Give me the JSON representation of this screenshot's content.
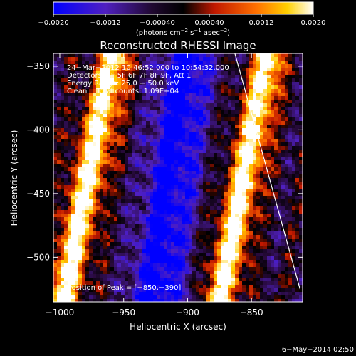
{
  "chart_data": {
    "type": "heatmap",
    "title": "Reconstructed RHESSI Image",
    "xlabel": "Heliocentric X (arcsec)",
    "ylabel": "Heliocentric Y (arcsec)",
    "xlim": [
      -1005,
      -810
    ],
    "ylim": [
      -535,
      -340
    ],
    "x_ticks": [
      -1000,
      -950,
      -900,
      -850
    ],
    "x_tick_labels": [
      "−1000",
      "−950",
      "−900",
      "−850"
    ],
    "y_ticks": [
      -350,
      -400,
      -450,
      -500
    ],
    "y_tick_labels": [
      "−350",
      "−400",
      "−450",
      "−500"
    ],
    "colorbar": {
      "range": [
        -0.002,
        0.002
      ],
      "ticks": [
        -0.002,
        -0.0012,
        -0.0004,
        0.0004,
        0.0012,
        0.002
      ],
      "tick_labels": [
        "−0.0020",
        "−0.0012",
        "−0.00040",
        "0.00040",
        "0.0012",
        "0.0020"
      ],
      "units_main": "(photons cm",
      "units_exp1": "−2",
      "units_mid": " s",
      "units_exp2": "−1",
      "units_mid2": " asec",
      "units_exp3": "−2",
      "units_end": ")",
      "colormap": [
        "#0000ff",
        "#6020a0",
        "#000000",
        "#c02000",
        "#ff8000",
        "#ffff00",
        "#ffffff"
      ]
    },
    "info_lines": [
      "24−Mar−2012 10:46:52.000 to 10:54:32.000",
      "Detectors: 3F 5F 6F 7F 8F 9F, Att 1",
      "Energy Range: 25.0 − 50.0 keV",
      "Clean    Total counts: 1.09E+04"
    ],
    "peak_label": "Position of Peak = [−850,−390]",
    "limb_line": [
      [
        -863,
        -340
      ],
      [
        -812,
        -525
      ]
    ],
    "bright_bands": [
      {
        "x_at_ymin": -998,
        "x_at_ymax": -957,
        "strength": 1.0
      },
      {
        "x_at_ymin": -875,
        "x_at_ymax": -836,
        "strength": 1.0
      }
    ],
    "dark_band": {
      "x_at_ymin": -925,
      "x_at_ymax": -900
    }
  },
  "footer": {
    "date": "6−May−2014 02:50"
  }
}
